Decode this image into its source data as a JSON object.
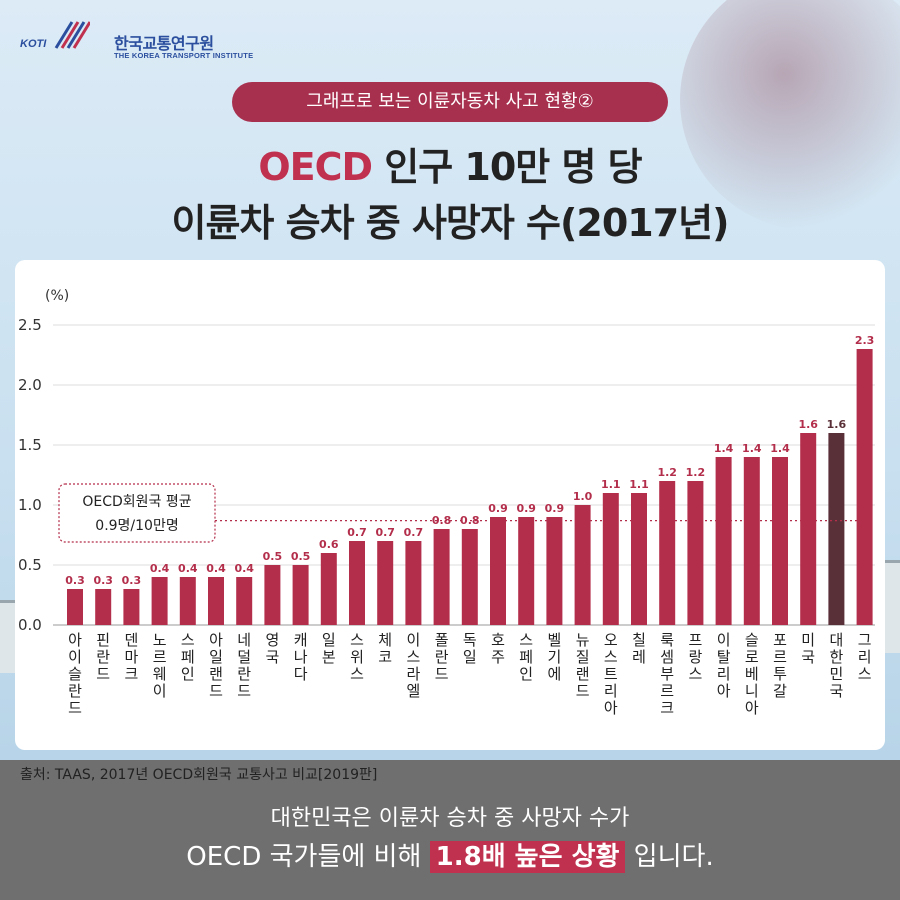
{
  "logo": {
    "mark_text": "KOTI",
    "name_ko": "한국교통연구원",
    "name_en": "THE KOREA TRANSPORT INSTITUTE"
  },
  "pill_label": "그래프로 보는 이륜자동차 사고 현황②",
  "title": {
    "line1_accent": "OECD",
    "line1_rest": " 인구 10만 명 당",
    "line2": "이륜차 승차 중 사망자 수(2017년)"
  },
  "colors": {
    "bar": "#b32e4b",
    "bar_highlight": "#5a3038",
    "accent": "#c0314f",
    "pill": "#a8304f"
  },
  "chart_data": {
    "type": "bar",
    "unit_label": "(%)",
    "ylim": [
      0,
      2.5
    ],
    "yticks": [
      "0.0",
      "0.5",
      "1.0",
      "1.5",
      "2.0",
      "2.5"
    ],
    "grid": true,
    "categories": [
      "아이슬란드",
      "핀란드",
      "덴마크",
      "노르웨이",
      "스페인",
      "아일랜드",
      "네덜란드",
      "영국",
      "캐나다",
      "일본",
      "스위스",
      "체코",
      "이스라엘",
      "폴란드",
      "독일",
      "호주",
      "스페인",
      "벨기에",
      "뉴질랜드",
      "오스트리아",
      "칠레",
      "룩셈부르크",
      "프랑스",
      "이탈리아",
      "슬로베니아",
      "포르투갈",
      "미국",
      "대한민국",
      "그리스"
    ],
    "values": [
      0.3,
      0.3,
      0.3,
      0.4,
      0.4,
      0.4,
      0.4,
      0.5,
      0.5,
      0.6,
      0.7,
      0.7,
      0.7,
      0.8,
      0.8,
      0.9,
      0.9,
      0.9,
      1.0,
      1.1,
      1.1,
      1.2,
      1.2,
      1.4,
      1.4,
      1.4,
      1.6,
      1.6,
      2.3
    ],
    "value_labels": [
      "0.3",
      "0.3",
      "0.3",
      "0.4",
      "0.4",
      "0.4",
      "0.4",
      "0.5",
      "0.5",
      "0.6",
      "0.7",
      "0.7",
      "0.7",
      "0.8",
      "0.8",
      "0.9",
      "0.9",
      "0.9",
      "1.0",
      "1.1",
      "1.1",
      "1.2",
      "1.2",
      "1.4",
      "1.4",
      "1.4",
      "1.6",
      "1.6",
      "2.3"
    ],
    "highlight": "대한민국",
    "reference_line": {
      "value": 0.87,
      "label_line1": "OECD회원국 평균",
      "label_line2": "0.9명/10만명"
    }
  },
  "source": "출처: TAAS, 2017년 OECD회원국 교통사고 비교[2019판]",
  "bottom": {
    "line1": "대한민국은 이륜차 승차 중 사망자 수가",
    "line2_pre": "OECD 국가들에 비해 ",
    "line2_highlight": "1.8배 높은 상황",
    "line2_post": " 입니다."
  }
}
